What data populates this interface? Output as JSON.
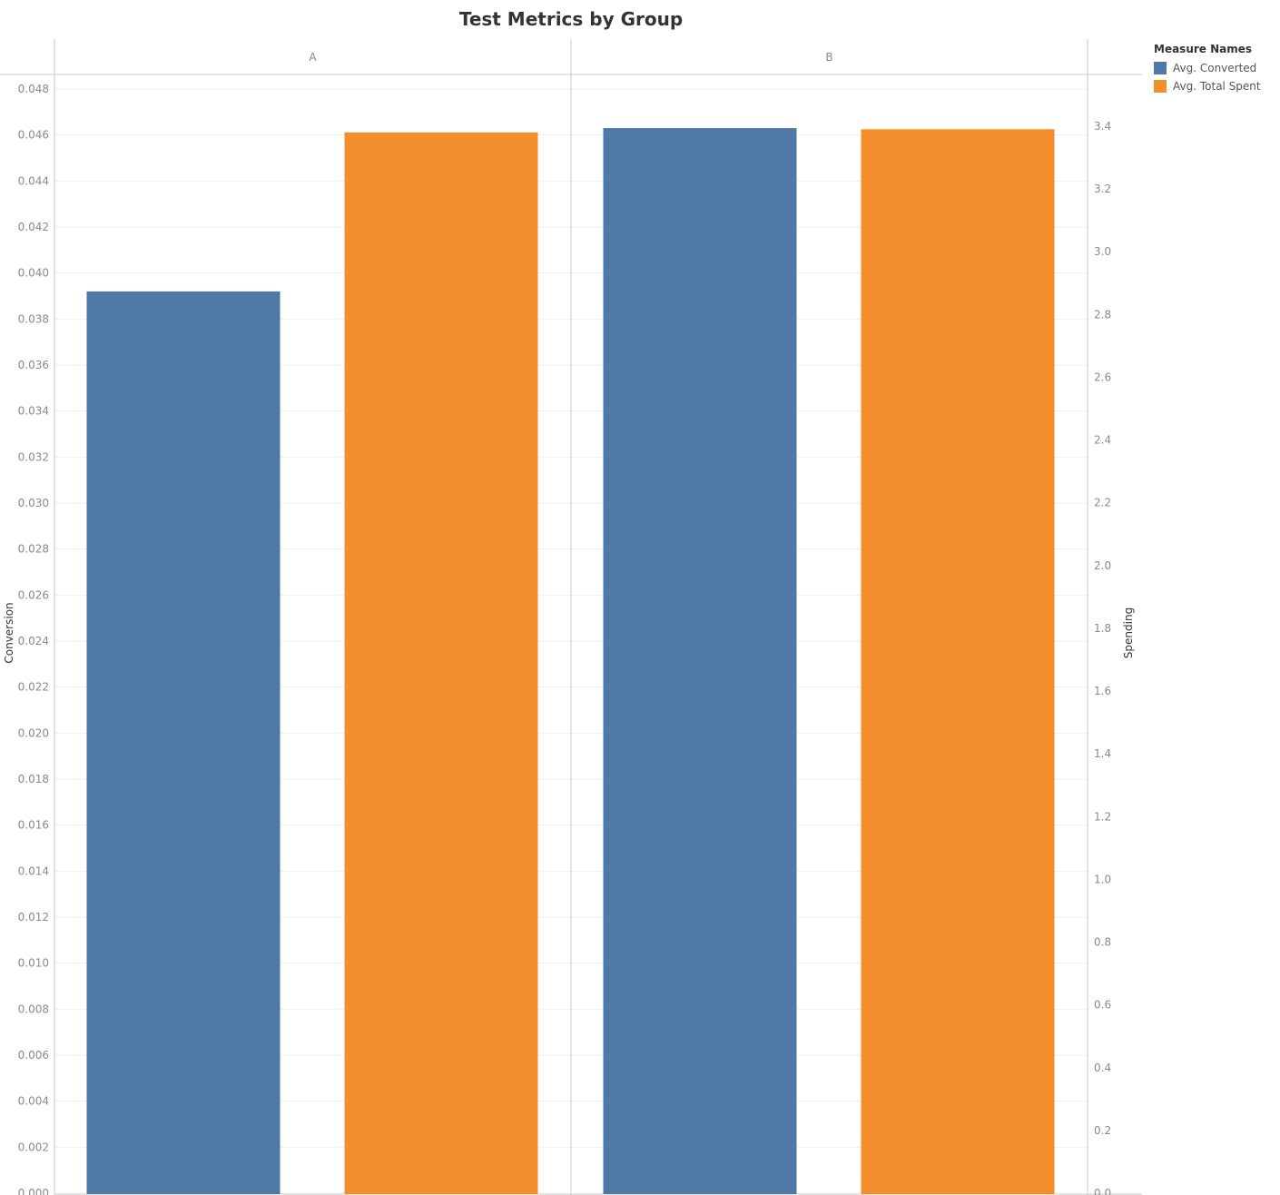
{
  "chart_data": {
    "type": "bar",
    "title": "Test Metrics by Group",
    "categories": [
      "A",
      "B"
    ],
    "series": [
      {
        "name": "Avg. Converted",
        "axis": "left",
        "color": "#4e79a7",
        "values": [
          0.0392,
          0.0463
        ]
      },
      {
        "name": "Avg. Total Spent",
        "axis": "right",
        "color": "#f28e2b",
        "values": [
          3.38,
          3.39
        ]
      }
    ],
    "ylabel": "Conversion",
    "ylim": [
      0,
      0.048
    ],
    "yticks": [
      "0.000",
      "0.002",
      "0.004",
      "0.006",
      "0.008",
      "0.010",
      "0.012",
      "0.014",
      "0.016",
      "0.018",
      "0.020",
      "0.022",
      "0.024",
      "0.026",
      "0.028",
      "0.030",
      "0.032",
      "0.034",
      "0.036",
      "0.038",
      "0.040",
      "0.042",
      "0.044",
      "0.046",
      "0.048"
    ],
    "y2label": "Spending",
    "y2lim": [
      0,
      3.5
    ],
    "y2ticks": [
      "0.0",
      "0.2",
      "0.4",
      "0.6",
      "0.8",
      "1.0",
      "1.2",
      "1.4",
      "1.6",
      "1.8",
      "2.0",
      "2.2",
      "2.4",
      "2.6",
      "2.8",
      "3.0",
      "3.2",
      "3.4"
    ],
    "grid": true,
    "legend": {
      "title": "Measure Names",
      "position": "top-right"
    }
  }
}
